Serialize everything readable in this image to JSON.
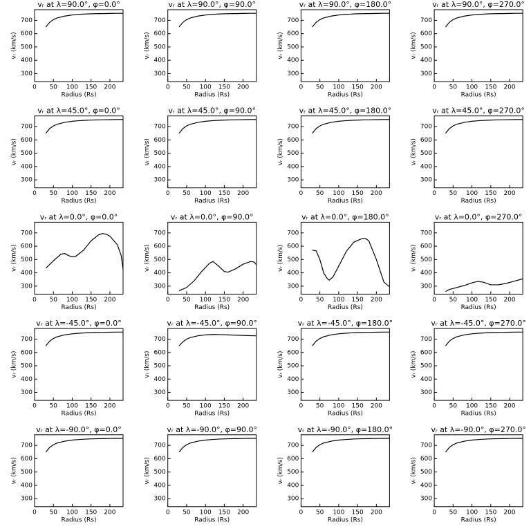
{
  "chart_data": [
    {
      "type": "line",
      "title": "vᵣ at λ=90.0°, φ=0.0°",
      "xlabel": "Radius (Rs)",
      "ylabel": "vᵣ (km/s)",
      "xlim": [
        0,
        235
      ],
      "ylim": [
        240,
        780
      ],
      "xticks": [
        0,
        50,
        100,
        150,
        200
      ],
      "yticks": [
        300,
        400,
        500,
        600,
        700
      ],
      "color": "#000000",
      "x": [
        30,
        40,
        50,
        60,
        80,
        100,
        120,
        140,
        160,
        180,
        200,
        220,
        235
      ],
      "values": [
        650,
        685,
        705,
        718,
        732,
        740,
        745,
        748,
        750,
        751,
        752,
        753,
        753
      ]
    },
    {
      "type": "line",
      "title": "vᵣ at λ=90.0°, φ=90.0°",
      "xlabel": "Radius (Rs)",
      "ylabel": "vᵣ (km/s)",
      "xlim": [
        0,
        235
      ],
      "ylim": [
        240,
        780
      ],
      "xticks": [
        0,
        50,
        100,
        150,
        200
      ],
      "yticks": [
        300,
        400,
        500,
        600,
        700
      ],
      "color": "#000000",
      "x": [
        30,
        40,
        50,
        60,
        80,
        100,
        120,
        140,
        160,
        180,
        200,
        220,
        235
      ],
      "values": [
        650,
        685,
        705,
        718,
        732,
        740,
        745,
        748,
        750,
        751,
        752,
        753,
        753
      ]
    },
    {
      "type": "line",
      "title": "vᵣ at λ=90.0°, φ=180.0°",
      "xlabel": "Radius (Rs)",
      "ylabel": "vᵣ (km/s)",
      "xlim": [
        0,
        235
      ],
      "ylim": [
        240,
        780
      ],
      "xticks": [
        0,
        50,
        100,
        150,
        200
      ],
      "yticks": [
        300,
        400,
        500,
        600,
        700
      ],
      "color": "#000000",
      "x": [
        30,
        40,
        50,
        60,
        80,
        100,
        120,
        140,
        160,
        180,
        200,
        220,
        235
      ],
      "values": [
        650,
        685,
        705,
        718,
        732,
        740,
        745,
        748,
        750,
        751,
        752,
        753,
        753
      ]
    },
    {
      "type": "line",
      "title": "vᵣ at λ=90.0°, φ=270.0°",
      "xlabel": "Radius (Rs)",
      "ylabel": "vᵣ (km/s)",
      "xlim": [
        0,
        235
      ],
      "ylim": [
        240,
        780
      ],
      "xticks": [
        0,
        50,
        100,
        150,
        200
      ],
      "yticks": [
        300,
        400,
        500,
        600,
        700
      ],
      "color": "#000000",
      "x": [
        30,
        40,
        50,
        60,
        80,
        100,
        120,
        140,
        160,
        180,
        200,
        220,
        235
      ],
      "values": [
        650,
        685,
        705,
        718,
        732,
        740,
        745,
        748,
        750,
        751,
        752,
        753,
        753
      ]
    },
    {
      "type": "line",
      "title": "vᵣ at λ=45.0°, φ=0.0°",
      "xlabel": "Radius (Rs)",
      "ylabel": "vᵣ (km/s)",
      "xlim": [
        0,
        235
      ],
      "ylim": [
        240,
        780
      ],
      "xticks": [
        0,
        50,
        100,
        150,
        200
      ],
      "yticks": [
        300,
        400,
        500,
        600,
        700
      ],
      "color": "#000000",
      "x": [
        30,
        40,
        50,
        60,
        80,
        100,
        120,
        140,
        160,
        180,
        200,
        220,
        235
      ],
      "values": [
        650,
        685,
        705,
        718,
        732,
        740,
        745,
        748,
        750,
        751,
        752,
        753,
        753
      ]
    },
    {
      "type": "line",
      "title": "vᵣ at λ=45.0°, φ=90.0°",
      "xlabel": "Radius (Rs)",
      "ylabel": "vᵣ (km/s)",
      "xlim": [
        0,
        235
      ],
      "ylim": [
        240,
        780
      ],
      "xticks": [
        0,
        50,
        100,
        150,
        200
      ],
      "yticks": [
        300,
        400,
        500,
        600,
        700
      ],
      "color": "#000000",
      "x": [
        30,
        40,
        50,
        60,
        80,
        100,
        120,
        140,
        160,
        180,
        200,
        220,
        235
      ],
      "values": [
        650,
        685,
        705,
        718,
        732,
        740,
        745,
        748,
        750,
        751,
        752,
        753,
        753
      ]
    },
    {
      "type": "line",
      "title": "vᵣ at λ=45.0°, φ=180.0°",
      "xlabel": "Radius (Rs)",
      "ylabel": "vᵣ (km/s)",
      "xlim": [
        0,
        235
      ],
      "ylim": [
        240,
        780
      ],
      "xticks": [
        0,
        50,
        100,
        150,
        200
      ],
      "yticks": [
        300,
        400,
        500,
        600,
        700
      ],
      "color": "#000000",
      "x": [
        30,
        40,
        50,
        60,
        80,
        100,
        120,
        140,
        160,
        180,
        200,
        220,
        235
      ],
      "values": [
        650,
        685,
        705,
        718,
        732,
        740,
        745,
        748,
        750,
        751,
        752,
        753,
        753
      ]
    },
    {
      "type": "line",
      "title": "vᵣ at λ=45.0°, φ=270.0°",
      "xlabel": "Radius (Rs)",
      "ylabel": "vᵣ (km/s)",
      "xlim": [
        0,
        235
      ],
      "ylim": [
        240,
        780
      ],
      "xticks": [
        0,
        50,
        100,
        150,
        200
      ],
      "yticks": [
        300,
        400,
        500,
        600,
        700
      ],
      "color": "#000000",
      "x": [
        30,
        40,
        50,
        60,
        80,
        100,
        120,
        140,
        160,
        180,
        200,
        220,
        235
      ],
      "values": [
        650,
        685,
        705,
        718,
        732,
        740,
        745,
        748,
        750,
        751,
        752,
        753,
        753
      ]
    },
    {
      "type": "line",
      "title": "vᵣ at λ=0.0°, φ=0.0°",
      "xlabel": "Radius (Rs)",
      "ylabel": "vᵣ (km/s)",
      "xlim": [
        0,
        235
      ],
      "ylim": [
        240,
        780
      ],
      "xticks": [
        0,
        50,
        100,
        150,
        200
      ],
      "yticks": [
        300,
        400,
        500,
        600,
        700
      ],
      "color": "#000000",
      "x": [
        30,
        50,
        70,
        80,
        90,
        100,
        110,
        130,
        150,
        170,
        180,
        190,
        200,
        220,
        230,
        235
      ],
      "values": [
        435,
        490,
        540,
        545,
        530,
        520,
        525,
        570,
        640,
        685,
        695,
        690,
        675,
        610,
        530,
        425
      ]
    },
    {
      "type": "line",
      "title": "vᵣ at λ=0.0°, φ=90.0°",
      "xlabel": "Radius (Rs)",
      "ylabel": "vᵣ (km/s)",
      "xlim": [
        0,
        235
      ],
      "ylim": [
        240,
        780
      ],
      "xticks": [
        0,
        50,
        100,
        150,
        200
      ],
      "yticks": [
        300,
        400,
        500,
        600,
        700
      ],
      "color": "#000000",
      "x": [
        30,
        50,
        70,
        90,
        110,
        120,
        135,
        150,
        160,
        180,
        200,
        220,
        230,
        235
      ],
      "values": [
        265,
        290,
        340,
        410,
        470,
        485,
        450,
        410,
        405,
        430,
        465,
        485,
        480,
        460
      ]
    },
    {
      "type": "line",
      "title": "vᵣ at λ=0.0°, φ=180.0°",
      "xlabel": "Radius (Rs)",
      "ylabel": "vᵣ (km/s)",
      "xlim": [
        0,
        235
      ],
      "ylim": [
        240,
        780
      ],
      "xticks": [
        0,
        50,
        100,
        150,
        200
      ],
      "yticks": [
        300,
        400,
        500,
        600,
        700
      ],
      "color": "#000000",
      "x": [
        30,
        40,
        50,
        60,
        70,
        75,
        85,
        100,
        120,
        140,
        160,
        170,
        180,
        200,
        220,
        235
      ],
      "values": [
        570,
        565,
        500,
        400,
        355,
        345,
        370,
        450,
        560,
        630,
        655,
        660,
        640,
        500,
        330,
        295
      ]
    },
    {
      "type": "line",
      "title": "vᵣ at λ=0.0°, φ=270.0°",
      "xlabel": "Radius (Rs)",
      "ylabel": "vᵣ (km/s)",
      "xlim": [
        0,
        235
      ],
      "ylim": [
        240,
        780
      ],
      "xticks": [
        0,
        50,
        100,
        150,
        200
      ],
      "yticks": [
        300,
        400,
        500,
        600,
        700
      ],
      "color": "#000000",
      "x": [
        30,
        40,
        60,
        80,
        100,
        115,
        130,
        150,
        170,
        190,
        210,
        235
      ],
      "values": [
        260,
        275,
        290,
        305,
        325,
        335,
        330,
        310,
        310,
        320,
        335,
        355
      ]
    },
    {
      "type": "line",
      "title": "vᵣ at λ=-45.0°, φ=0.0°",
      "xlabel": "Radius (Rs)",
      "ylabel": "vᵣ (km/s)",
      "xlim": [
        0,
        235
      ],
      "ylim": [
        240,
        780
      ],
      "xticks": [
        0,
        50,
        100,
        150,
        200
      ],
      "yticks": [
        300,
        400,
        500,
        600,
        700
      ],
      "color": "#000000",
      "x": [
        30,
        40,
        50,
        60,
        80,
        100,
        120,
        140,
        160,
        180,
        200,
        220,
        235
      ],
      "values": [
        650,
        685,
        705,
        718,
        732,
        740,
        745,
        748,
        750,
        751,
        752,
        753,
        753
      ]
    },
    {
      "type": "line",
      "title": "vᵣ at λ=-45.0°, φ=90.0°",
      "xlabel": "Radius (Rs)",
      "ylabel": "vᵣ (km/s)",
      "xlim": [
        0,
        235
      ],
      "ylim": [
        240,
        780
      ],
      "xticks": [
        0,
        50,
        100,
        150,
        200
      ],
      "yticks": [
        300,
        400,
        500,
        600,
        700
      ],
      "color": "#000000",
      "x": [
        30,
        40,
        50,
        60,
        80,
        100,
        120,
        140,
        160,
        180,
        200,
        220,
        235
      ],
      "values": [
        650,
        680,
        700,
        712,
        725,
        732,
        735,
        734,
        732,
        730,
        728,
        726,
        725
      ]
    },
    {
      "type": "line",
      "title": "vᵣ at λ=-45.0°, φ=180.0°",
      "xlabel": "Radius (Rs)",
      "ylabel": "vᵣ (km/s)",
      "xlim": [
        0,
        235
      ],
      "ylim": [
        240,
        780
      ],
      "xticks": [
        0,
        50,
        100,
        150,
        200
      ],
      "yticks": [
        300,
        400,
        500,
        600,
        700
      ],
      "color": "#000000",
      "x": [
        30,
        40,
        50,
        60,
        80,
        100,
        120,
        140,
        160,
        180,
        200,
        220,
        235
      ],
      "values": [
        650,
        685,
        705,
        718,
        732,
        740,
        745,
        748,
        750,
        751,
        752,
        753,
        753
      ]
    },
    {
      "type": "line",
      "title": "vᵣ at λ=-45.0°, φ=270.0°",
      "xlabel": "Radius (Rs)",
      "ylabel": "vᵣ (km/s)",
      "xlim": [
        0,
        235
      ],
      "ylim": [
        240,
        780
      ],
      "xticks": [
        0,
        50,
        100,
        150,
        200
      ],
      "yticks": [
        300,
        400,
        500,
        600,
        700
      ],
      "color": "#000000",
      "x": [
        30,
        40,
        50,
        60,
        80,
        100,
        120,
        140,
        160,
        180,
        200,
        220,
        235
      ],
      "values": [
        650,
        685,
        705,
        718,
        732,
        740,
        745,
        748,
        750,
        751,
        752,
        753,
        753
      ]
    },
    {
      "type": "line",
      "title": "vᵣ at λ=-90.0°, φ=0.0°",
      "xlabel": "Radius (Rs)",
      "ylabel": "vᵣ (km/s)",
      "xlim": [
        0,
        235
      ],
      "ylim": [
        240,
        780
      ],
      "xticks": [
        0,
        50,
        100,
        150,
        200
      ],
      "yticks": [
        300,
        400,
        500,
        600,
        700
      ],
      "color": "#000000",
      "x": [
        30,
        40,
        50,
        60,
        80,
        100,
        120,
        140,
        160,
        180,
        200,
        220,
        235
      ],
      "values": [
        650,
        685,
        705,
        718,
        732,
        740,
        745,
        748,
        750,
        751,
        752,
        753,
        753
      ]
    },
    {
      "type": "line",
      "title": "vᵣ at λ=-90.0°, φ=90.0°",
      "xlabel": "Radius (Rs)",
      "ylabel": "vᵣ (km/s)",
      "xlim": [
        0,
        235
      ],
      "ylim": [
        240,
        780
      ],
      "xticks": [
        0,
        50,
        100,
        150,
        200
      ],
      "yticks": [
        300,
        400,
        500,
        600,
        700
      ],
      "color": "#000000",
      "x": [
        30,
        40,
        50,
        60,
        80,
        100,
        120,
        140,
        160,
        180,
        200,
        220,
        235
      ],
      "values": [
        650,
        685,
        705,
        718,
        732,
        740,
        745,
        748,
        750,
        751,
        752,
        753,
        753
      ]
    },
    {
      "type": "line",
      "title": "vᵣ at λ=-90.0°, φ=180.0°",
      "xlabel": "Radius (Rs)",
      "ylabel": "vᵣ (km/s)",
      "xlim": [
        0,
        235
      ],
      "ylim": [
        240,
        780
      ],
      "xticks": [
        0,
        50,
        100,
        150,
        200
      ],
      "yticks": [
        300,
        400,
        500,
        600,
        700
      ],
      "color": "#000000",
      "x": [
        30,
        40,
        50,
        60,
        80,
        100,
        120,
        140,
        160,
        180,
        200,
        220,
        235
      ],
      "values": [
        650,
        685,
        705,
        718,
        732,
        740,
        745,
        748,
        750,
        751,
        752,
        753,
        753
      ]
    },
    {
      "type": "line",
      "title": "vᵣ at λ=-90.0°, φ=270.0°",
      "xlabel": "Radius (Rs)",
      "ylabel": "vᵣ (km/s)",
      "xlim": [
        0,
        235
      ],
      "ylim": [
        240,
        780
      ],
      "xticks": [
        0,
        50,
        100,
        150,
        200
      ],
      "yticks": [
        300,
        400,
        500,
        600,
        700
      ],
      "color": "#000000",
      "x": [
        30,
        40,
        50,
        60,
        80,
        100,
        120,
        140,
        160,
        180,
        200,
        220,
        235
      ],
      "values": [
        650,
        685,
        705,
        718,
        732,
        740,
        745,
        748,
        750,
        751,
        752,
        753,
        753
      ]
    }
  ]
}
